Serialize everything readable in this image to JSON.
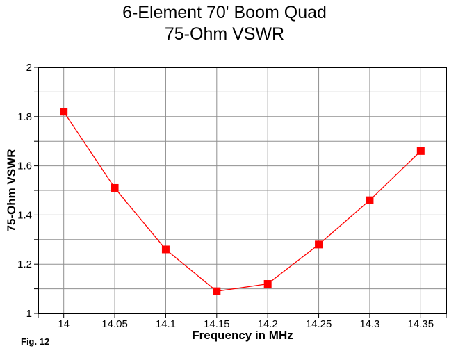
{
  "title": {
    "line1": "6-Element 70' Boom Quad",
    "line2": "75-Ohm VSWR"
  },
  "fig_label": "Fig. 12",
  "chart_data": {
    "type": "line",
    "title": "6-Element 70' Boom Quad",
    "subtitle": "75-Ohm VSWR",
    "xlabel": "Frequency in MHz",
    "ylabel": "75-Ohm VSWR",
    "x": [
      14,
      14.05,
      14.1,
      14.15,
      14.2,
      14.25,
      14.3,
      14.35
    ],
    "series": [
      {
        "name": "75-Ohm VSWR",
        "values": [
          1.82,
          1.51,
          1.26,
          1.09,
          1.12,
          1.28,
          1.46,
          1.66
        ],
        "color": "#ff0000",
        "marker": "square"
      }
    ],
    "x_tick_labels": [
      "14",
      "14.05",
      "14.1",
      "14.15",
      "14.2",
      "14.25",
      "14.3",
      "14.35"
    ],
    "y_ticks": [
      {
        "v": 2.0,
        "label": "2"
      },
      {
        "v": 1.9,
        "label": ""
      },
      {
        "v": 1.8,
        "label": "1.8"
      },
      {
        "v": 1.7,
        "label": ""
      },
      {
        "v": 1.6,
        "label": "1.6"
      },
      {
        "v": 1.5,
        "label": ""
      },
      {
        "v": 1.4,
        "label": "1.4"
      },
      {
        "v": 1.3,
        "label": ""
      },
      {
        "v": 1.2,
        "label": "1.2"
      },
      {
        "v": 1.1,
        "label": ""
      },
      {
        "v": 1.0,
        "label": "1"
      }
    ],
    "ylim": [
      1,
      2
    ],
    "grid": true,
    "legend": false,
    "colors": {
      "line": "#ff0000",
      "gridline": "#909090",
      "axis": "#000000",
      "background": "#ffffff",
      "text": "#000000"
    }
  }
}
